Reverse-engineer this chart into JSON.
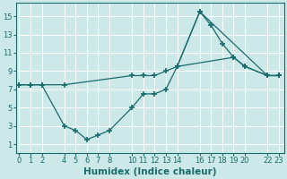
{
  "xlabel": "Humidex (Indice chaleur)",
  "ylabel": "",
  "bg_color": "#cce8e8",
  "grid_color": "#ffffff",
  "line_color": "#1a6b6b",
  "line1_x": [
    0,
    1,
    2,
    4,
    10,
    11,
    12,
    13,
    14,
    19,
    20,
    22,
    23
  ],
  "line1_y": [
    7.5,
    7.5,
    7.5,
    7.5,
    8.5,
    8.5,
    8.5,
    9.0,
    9.5,
    10.5,
    9.5,
    8.5,
    8.5
  ],
  "line2_x": [
    0,
    1,
    2,
    4,
    5,
    6,
    7,
    8,
    10,
    11,
    12,
    13,
    14,
    16,
    22,
    23
  ],
  "line2_y": [
    7.5,
    7.5,
    7.5,
    3.0,
    2.5,
    1.5,
    2.0,
    2.5,
    5.0,
    6.5,
    6.5,
    7.0,
    9.5,
    15.5,
    8.5,
    8.5
  ],
  "line3_x": [
    14,
    16,
    17,
    18,
    19,
    20,
    22,
    23
  ],
  "line3_y": [
    9.5,
    15.5,
    14.0,
    12.0,
    10.5,
    9.5,
    8.5,
    8.5
  ],
  "xlim": [
    -0.3,
    23.5
  ],
  "ylim": [
    0,
    16.5
  ],
  "xticks": [
    0,
    1,
    2,
    4,
    5,
    6,
    7,
    8,
    10,
    11,
    12,
    13,
    14,
    16,
    17,
    18,
    19,
    20,
    22,
    23
  ],
  "yticks": [
    1,
    3,
    5,
    7,
    9,
    11,
    13,
    15
  ],
  "tick_fontsize": 6,
  "xlabel_fontsize": 7.5
}
